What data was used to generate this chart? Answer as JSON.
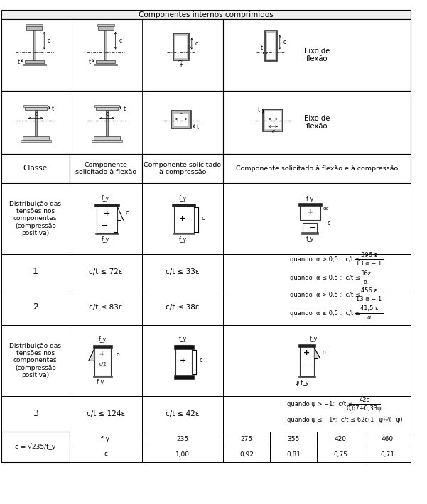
{
  "header_top": "Componentes internos comprimidos",
  "eixo_flexao": "Eixo de\nflexão",
  "col_headers": [
    "Classe",
    "Componente\nsolicitado à flexão",
    "Componente solicitado\nà compressão",
    "Componente solicitado à flexão e à compressão"
  ],
  "stress_label": "Distribuição das\ntensões nos\ncomponentes\n(compressão\npositiva)",
  "class_labels": [
    "1",
    "2",
    "3"
  ],
  "class1_col1": "c/t ≤ 72ε",
  "class1_col2": "c/t ≤ 33ε",
  "class2_col1": "c/t ≤ 83ε",
  "class2_col2": "c/t ≤ 38ε",
  "class3_col1": "c/t ≤ 124ε",
  "class3_col2": "c/t ≤ 42ε",
  "class1_q1": "quando  α > 0,5 :  c/t ≤",
  "class1_n1": "396 ε",
  "class1_d1": "13 α − 1",
  "class1_q2": "quando  α ≤ 0,5 :  c/t ≤",
  "class1_n2": "36ε",
  "class1_d2": "α",
  "class2_q1": "quando  α > 0,5 :  c/t ≤",
  "class2_n1": "456 ε",
  "class2_d1": "13 α − 1",
  "class2_q2": "quando  α ≤ 0,5 :  c/t ≤",
  "class2_n2": "41,5 ε",
  "class2_d2": "α",
  "class3_q1": "quando ψ > −1:  c/t ≤",
  "class3_n1": "42ε",
  "class3_d1": "0,67+0,33ψ",
  "class3_q2": "quando ψ ≤ −1ᵃ:  c/t ≤ 62ε(1−ψ)√(−ψ)",
  "footer_label": "ε = √235/f_y",
  "footer_fy": [
    "f_y",
    "235",
    "275",
    "355",
    "420",
    "460"
  ],
  "footer_eps": [
    "ε",
    "1,00",
    "0,92",
    "0,81",
    "0,75",
    "0,71"
  ]
}
